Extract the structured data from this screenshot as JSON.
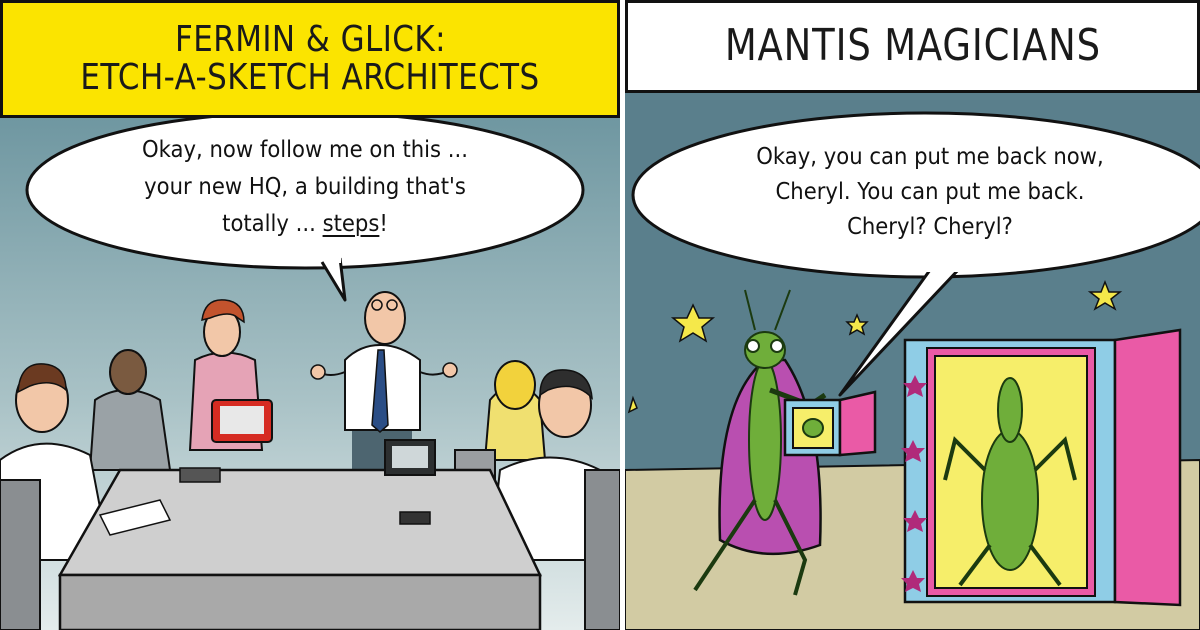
{
  "left_panel": {
    "caption": {
      "line1": "FERMIN & GLICK:",
      "line2": "ETCH-A-SKETCH ARCHITECTS"
    },
    "speech": {
      "line1": "Okay, now follow me on this ...",
      "line2": "your new HQ, a building that's",
      "line3_prefix": "totally ... ",
      "line3_emphasis": "steps",
      "line3_suffix": "!"
    }
  },
  "right_panel": {
    "caption": {
      "line1": "MANTIS MAGICIANS"
    },
    "speech": {
      "line1": "Okay, you can put me back now,",
      "line2": "Cheryl. You can put me back.",
      "line3": "Cheryl? Cheryl?"
    }
  },
  "colors": {
    "left_caption_bg": "#fbe400",
    "left_wall": "#7fa4ad",
    "table": "#cfcfcf",
    "right_wall": "#5a7f8c",
    "right_floor": "#d2cba3",
    "cape": "#b94fb0",
    "cabinet_blue": "#8fcde6",
    "cabinet_pink": "#ea5aa6",
    "mantis_green": "#6fae3a"
  }
}
